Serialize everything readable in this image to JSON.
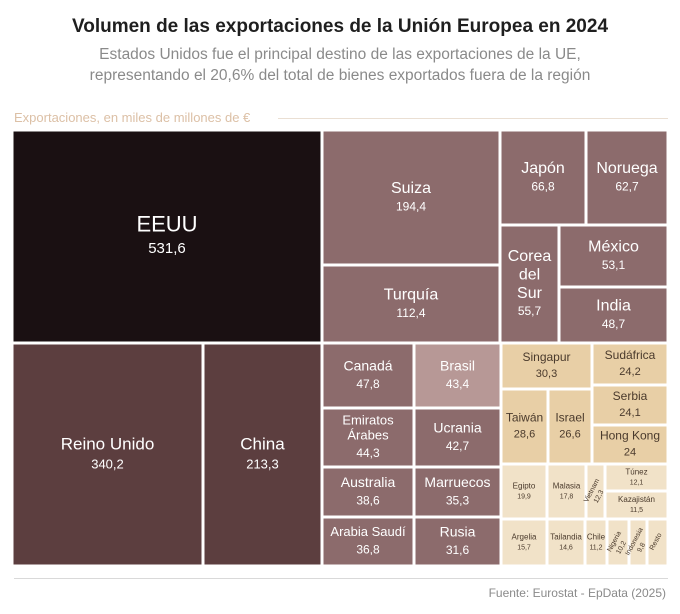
{
  "header": {
    "title": "Volumen de las exportaciones de la Unión Europea en 2024",
    "subtitle_line1": "Estados Unidos fue el principal destino de las exportaciones de la UE,",
    "subtitle_line2": "representando el 20,6% del total de bienes exportados fuera de la región"
  },
  "unit_label": "Exportaciones, en miles de millones de €",
  "source": "Fuente: Eurostat - EpData (2025)",
  "colors": {
    "top": "#1a1012",
    "tier2": "#5c3e3f",
    "tier3": "#8c6b6c",
    "tier4": "#b79896",
    "tier5": "#e8cfa6",
    "tier6": "#f1e2c8"
  },
  "chart_data": {
    "type": "treemap",
    "unit": "miles de millones de €",
    "items": [
      {
        "name": "EEUU",
        "value": 531.6,
        "label": "531,6"
      },
      {
        "name": "Reino Unido",
        "value": 340.2,
        "label": "340,2"
      },
      {
        "name": "China",
        "value": 213.3,
        "label": "213,3"
      },
      {
        "name": "Suiza",
        "value": 194.4,
        "label": "194,4"
      },
      {
        "name": "Turquía",
        "value": 112.4,
        "label": "112,4"
      },
      {
        "name": "Japón",
        "value": 66.8,
        "label": "66,8"
      },
      {
        "name": "Noruega",
        "value": 62.7,
        "label": "62,7"
      },
      {
        "name": "Corea del Sur",
        "value": 55.7,
        "label": "55,7"
      },
      {
        "name": "México",
        "value": 53.1,
        "label": "53,1"
      },
      {
        "name": "India",
        "value": 48.7,
        "label": "48,7"
      },
      {
        "name": "Canadá",
        "value": 47.8,
        "label": "47,8"
      },
      {
        "name": "Brasil",
        "value": 43.4,
        "label": "43,4"
      },
      {
        "name": "Emiratos Árabes",
        "value": 44.3,
        "label": "44,3"
      },
      {
        "name": "Ucrania",
        "value": 42.7,
        "label": "42,7"
      },
      {
        "name": "Australia",
        "value": 38.6,
        "label": "38,6"
      },
      {
        "name": "Marruecos",
        "value": 35.3,
        "label": "35,3"
      },
      {
        "name": "Arabia Saudí",
        "value": 36.8,
        "label": "36,8"
      },
      {
        "name": "Rusia",
        "value": 31.6,
        "label": "31,6"
      },
      {
        "name": "Singapur",
        "value": 30.3,
        "label": "30,3"
      },
      {
        "name": "Sudáfrica",
        "value": 24.2,
        "label": "24,2"
      },
      {
        "name": "Serbia",
        "value": 24.1,
        "label": "24,1"
      },
      {
        "name": "Taiwán",
        "value": 28.6,
        "label": "28,6"
      },
      {
        "name": "Israel",
        "value": 26.6,
        "label": "26,6"
      },
      {
        "name": "Hong Kong",
        "value": 24,
        "label": "24"
      },
      {
        "name": "Túnez",
        "value": 12.1,
        "label": "12,1"
      },
      {
        "name": "Egipto",
        "value": 19.9,
        "label": "19,9"
      },
      {
        "name": "Malasia",
        "value": 17.8,
        "label": "17,8"
      },
      {
        "name": "Vietnam",
        "value": 12.3,
        "label": "12,3"
      },
      {
        "name": "Kazajistán",
        "value": 11.5,
        "label": "11,5"
      },
      {
        "name": "Argelia",
        "value": 15.7,
        "label": "15,7"
      },
      {
        "name": "Tailandia",
        "value": 14.6,
        "label": "14,6"
      },
      {
        "name": "Chile",
        "value": 11.2,
        "label": "11,2"
      },
      {
        "name": "Nigeria",
        "value": 10.2,
        "label": "10,2"
      },
      {
        "name": "Indonesia",
        "value": 9.8,
        "label": "9,8"
      },
      {
        "name": "Resto",
        "value": null,
        "label": ""
      }
    ]
  }
}
